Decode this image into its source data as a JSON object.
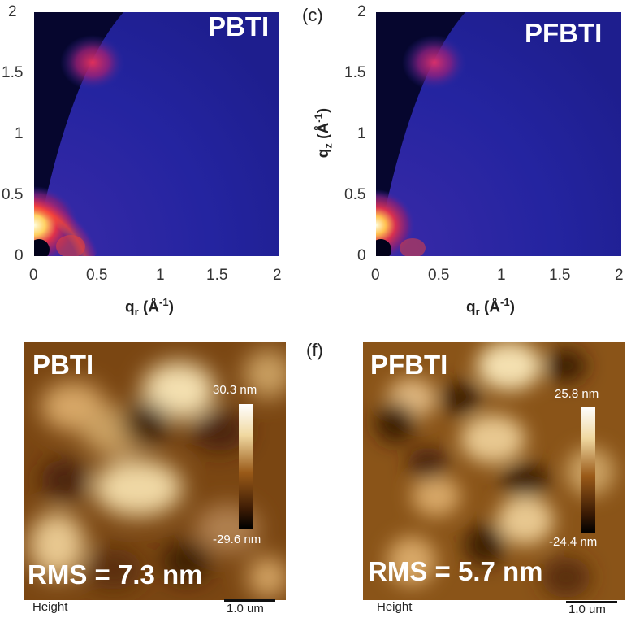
{
  "panels": [
    {
      "letter": "",
      "title": "PBTI",
      "x_ticks": [
        "0",
        "0.5",
        "1",
        "1.5",
        "2"
      ],
      "y_ticks": [
        "0",
        "0.5",
        "1",
        "1.5",
        "2"
      ],
      "xlabel_main": "q",
      "xlabel_sub": "r",
      "xlabel_unit": "(Å",
      "xlabel_exp": "-1",
      "xlabel_close": ")"
    },
    {
      "letter": "(c)",
      "title": "PFBTI",
      "x_ticks": [
        "0",
        "0.5",
        "1",
        "1.5",
        "2"
      ],
      "y_ticks": [
        "0",
        "0.5",
        "1",
        "1.5",
        "2"
      ],
      "xlabel_main": "q",
      "xlabel_sub": "r",
      "xlabel_unit": "(Å",
      "xlabel_exp": "-1",
      "xlabel_close": ")",
      "ylabel_main": "q",
      "ylabel_sub": "z",
      "ylabel_unit": "(Å",
      "ylabel_exp": "-1",
      "ylabel_close": ")"
    }
  ],
  "afm": [
    {
      "letter": "",
      "title": "PBTI",
      "cbar_max": "30.3 nm",
      "cbar_min": "-29.6 nm",
      "rms": "RMS = 7.3 nm",
      "channel": "Height",
      "scale": "1.0 um"
    },
    {
      "letter": "(f)",
      "title": "PFBTI",
      "cbar_max": "25.8 nm",
      "cbar_min": "-24.4 nm",
      "rms": "RMS = 5.7 nm",
      "channel": "Height",
      "scale": "1.0 um"
    }
  ],
  "colors": {
    "giwaxs_background": "#1a1a8c",
    "giwaxs_void": "#050530",
    "afm_mid": "#8a5418",
    "afm_dark": "#2a1204",
    "afm_light": "#f0dcb0"
  }
}
